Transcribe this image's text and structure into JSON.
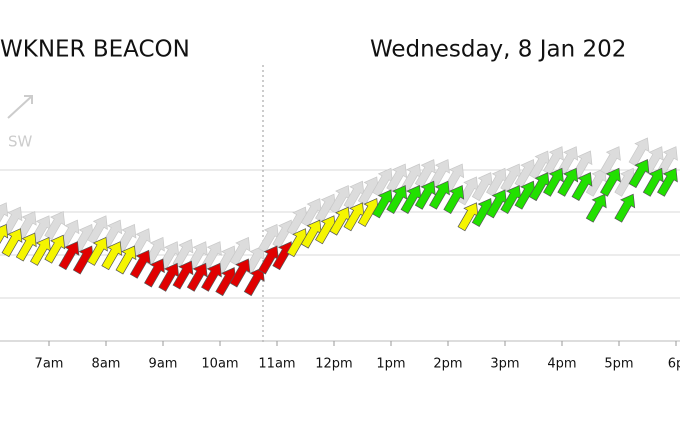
{
  "chart_data": {
    "type": "wind-arrows",
    "title": "WKNER BEACON",
    "subtitle": "Wednesday, 8 Jan 202",
    "direction_label": "SW",
    "x": [
      6.25,
      6.5,
      6.75,
      7.0,
      7.25,
      7.5,
      7.75,
      8.0,
      8.25,
      8.5,
      8.75,
      9.0,
      9.25,
      9.5,
      9.75,
      10.0,
      10.25,
      10.5,
      10.75,
      11.0,
      11.25,
      11.5,
      11.75,
      12.0,
      12.25,
      12.5,
      12.75,
      13.0,
      13.25,
      13.5,
      13.75,
      14.0,
      14.25,
      14.5,
      14.75,
      15.0,
      15.25,
      15.5,
      15.75,
      16.0,
      16.25,
      16.5,
      16.75,
      17.0,
      17.25,
      17.5,
      17.75,
      18.0
    ],
    "xlim": [
      6,
      18
    ],
    "xticks": [
      {
        "value": 6,
        "label": "m"
      },
      {
        "value": 7,
        "label": "7am"
      },
      {
        "value": 8,
        "label": "8am"
      },
      {
        "value": 9,
        "label": "9am"
      },
      {
        "value": 10,
        "label": "10am"
      },
      {
        "value": 11,
        "label": "11am"
      },
      {
        "value": 12,
        "label": "12pm"
      },
      {
        "value": 13,
        "label": "1pm"
      },
      {
        "value": 14,
        "label": "2pm"
      },
      {
        "value": 15,
        "label": "3pm"
      },
      {
        "value": 16,
        "label": "4pm"
      },
      {
        "value": 17,
        "label": "5pm"
      },
      {
        "value": 18,
        "label": "6p"
      }
    ],
    "ylim": [
      0,
      5.5
    ],
    "series": [
      {
        "name": "gust",
        "color": "#dcdcdc",
        "values": [
          3.2,
          3.1,
          3.0,
          2.9,
          3.0,
          2.8,
          2.7,
          2.9,
          2.8,
          2.7,
          2.6,
          2.4,
          2.3,
          2.35,
          2.3,
          2.3,
          2.2,
          2.4,
          2.2,
          2.7,
          2.8,
          3.1,
          3.3,
          3.4,
          3.6,
          3.7,
          3.8,
          4.0,
          4.1,
          4.1,
          4.2,
          4.2,
          4.1,
          3.8,
          3.9,
          4.0,
          4.1,
          4.2,
          4.4,
          4.5,
          4.5,
          4.4,
          4.0,
          4.5,
          4.0,
          4.7,
          4.5,
          4.5
        ]
      },
      {
        "name": "average",
        "values": [
          2.7,
          2.6,
          2.5,
          2.4,
          2.45,
          2.3,
          2.2,
          2.4,
          2.3,
          2.2,
          2.1,
          1.9,
          1.8,
          1.85,
          1.8,
          1.8,
          1.7,
          1.9,
          1.7,
          2.2,
          2.3,
          2.6,
          2.8,
          2.9,
          3.1,
          3.2,
          3.3,
          3.5,
          3.6,
          3.6,
          3.7,
          3.7,
          3.6,
          3.2,
          3.3,
          3.5,
          3.6,
          3.7,
          3.9,
          4.0,
          4.0,
          3.9,
          3.4,
          4.0,
          3.4,
          4.2,
          4.0,
          4.0
        ],
        "colors": [
          "#f5f500",
          "#f5f500",
          "#f5f500",
          "#f5f500",
          "#f5f500",
          "#e00000",
          "#e00000",
          "#f5f500",
          "#f5f500",
          "#f5f500",
          "#e00000",
          "#e00000",
          "#e00000",
          "#e00000",
          "#e00000",
          "#e00000",
          "#e00000",
          "#e00000",
          "#e00000",
          "#e00000",
          "#e00000",
          "#f5f500",
          "#f5f500",
          "#f5f500",
          "#f5f500",
          "#f5f500",
          "#f5f500",
          "#22e000",
          "#22e000",
          "#22e000",
          "#22e000",
          "#22e000",
          "#22e000",
          "#f5f500",
          "#22e000",
          "#22e000",
          "#22e000",
          "#22e000",
          "#22e000",
          "#22e000",
          "#22e000",
          "#22e000",
          "#22e000",
          "#22e000",
          "#22e000",
          "#22e000",
          "#22e000",
          "#22e000"
        ]
      }
    ],
    "direction_degrees": 30
  }
}
